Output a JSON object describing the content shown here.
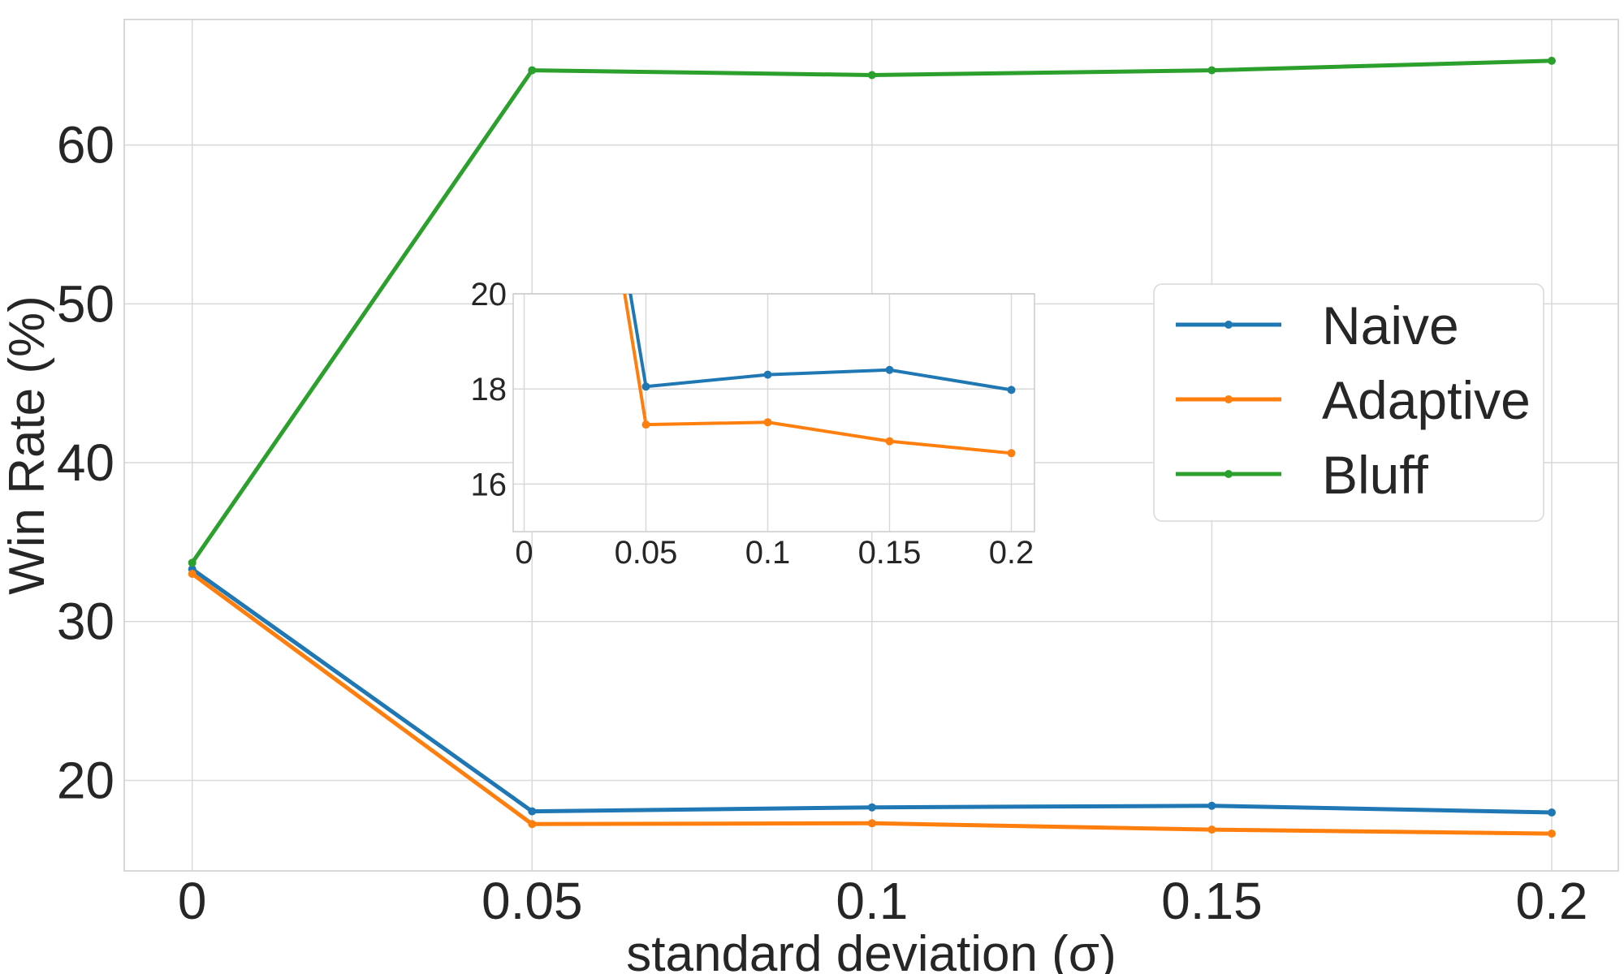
{
  "chart_data": {
    "type": "line",
    "x": [
      0,
      0.05,
      0.1,
      0.15,
      0.2
    ],
    "tick_labels": [
      "0",
      "0.05",
      "0.1",
      "0.15",
      "0.2"
    ],
    "xlabel": "standard deviation (σ)",
    "ylabel": "Win Rate (%)",
    "ylim": [
      14.3,
      67.9
    ],
    "yticks": [
      20,
      30,
      40,
      50,
      60
    ],
    "grid": true,
    "legend_position": "right",
    "series": [
      {
        "name": "Naive",
        "color": "#1f77b4",
        "values": [
          33.3,
          18.05,
          18.3,
          18.4,
          17.98
        ]
      },
      {
        "name": "Adaptive",
        "color": "#ff7f0e",
        "values": [
          33.0,
          17.25,
          17.3,
          16.9,
          16.65
        ]
      },
      {
        "name": "Bluff",
        "color": "#2ca02c",
        "values": [
          33.7,
          64.7,
          64.4,
          64.7,
          65.3
        ]
      }
    ],
    "inset": {
      "ylim": [
        15.0,
        20.0
      ],
      "yticks": [
        16,
        18,
        20
      ],
      "tick_labels": [
        "0",
        "0.05",
        "0.1",
        "0.15",
        "0.2"
      ]
    }
  }
}
